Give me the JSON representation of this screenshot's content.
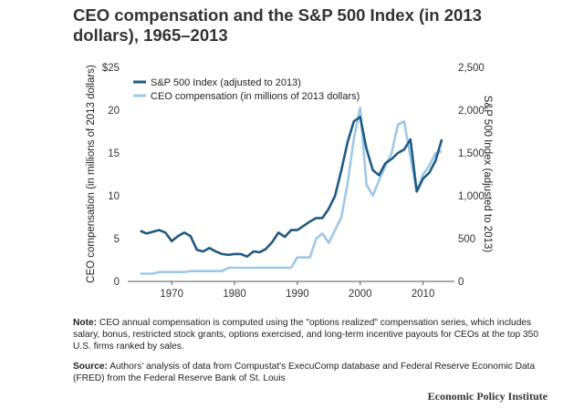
{
  "title": "CEO compensation and the S&P 500 Index (in 2013 dollars), 1965–2013",
  "note_label": "Note:",
  "note_text": " CEO annual compensation is computed using the \"options realized\" compensation series, which includes salary, bonus, restricted stock grants, options exercised, and long-term incentive payouts for CEOs at the top 350 U.S. firms ranked by sales.",
  "source_label": "Source:",
  "source_text": " Authors' analysis of data from Compustat's ExecuComp database and Federal Reserve Economic Data (FRED) from the Federal Reserve Bank of St. Louis",
  "brand": "Economic Policy Institute",
  "colors": {
    "sp500": "#1f5a82",
    "ceo": "#9fc8e6",
    "axis": "#555555"
  },
  "chart_data": {
    "type": "line",
    "left_axis": {
      "label": "CEO compensation (in millions of 2013 dollars)",
      "range": [
        0,
        25
      ],
      "ticks": [
        0,
        5,
        10,
        15,
        20,
        25
      ],
      "tick_labels": [
        "0",
        "5",
        "10",
        "15",
        "20",
        "$25"
      ]
    },
    "right_axis": {
      "label": "S&P 500 Index (adjusted to 2013)",
      "range": [
        0,
        2500
      ],
      "ticks": [
        0,
        500,
        1000,
        1500,
        2000,
        2500
      ],
      "tick_labels": [
        "0",
        "500",
        "1,000",
        "1,500",
        "2,000",
        "2,500"
      ]
    },
    "x_axis": {
      "range": [
        1963,
        2015
      ],
      "ticks": [
        1970,
        1980,
        1990,
        2000,
        2010
      ],
      "tick_labels": [
        "1970",
        "1980",
        "1990",
        "2000",
        "2010"
      ]
    },
    "legend_position": "top-left",
    "series": [
      {
        "name": "S&P 500 Index (adjusted to 2013)",
        "axis": "right",
        "x": [
          1965,
          1966,
          1967,
          1968,
          1969,
          1970,
          1971,
          1972,
          1973,
          1974,
          1975,
          1976,
          1977,
          1978,
          1979,
          1980,
          1981,
          1982,
          1983,
          1984,
          1985,
          1986,
          1987,
          1988,
          1989,
          1990,
          1991,
          1992,
          1993,
          1994,
          1995,
          1996,
          1997,
          1998,
          1999,
          2000,
          2001,
          2002,
          2003,
          2004,
          2005,
          2006,
          2007,
          2008,
          2009,
          2010,
          2011,
          2012,
          2013
        ],
        "values": [
          590,
          560,
          580,
          600,
          570,
          470,
          530,
          570,
          530,
          370,
          350,
          390,
          350,
          320,
          310,
          320,
          320,
          290,
          350,
          340,
          380,
          460,
          570,
          520,
          600,
          600,
          650,
          700,
          740,
          740,
          850,
          1000,
          1300,
          1630,
          1870,
          1920,
          1550,
          1300,
          1240,
          1380,
          1430,
          1500,
          1540,
          1660,
          1050,
          1200,
          1270,
          1410,
          1660
        ]
      },
      {
        "name": "CEO compensation (in millions of 2013 dollars)",
        "axis": "left",
        "x": [
          1965,
          1966,
          1967,
          1968,
          1969,
          1970,
          1971,
          1972,
          1973,
          1974,
          1975,
          1976,
          1977,
          1978,
          1979,
          1980,
          1981,
          1982,
          1983,
          1984,
          1985,
          1986,
          1987,
          1988,
          1989,
          1990,
          1991,
          1992,
          1993,
          1994,
          1995,
          1996,
          1997,
          1998,
          1999,
          2000,
          2001,
          2002,
          2003,
          2004,
          2005,
          2006,
          2007,
          2008,
          2009,
          2010,
          2011,
          2012,
          2013
        ],
        "values": [
          0.9,
          0.9,
          0.9,
          1.1,
          1.1,
          1.1,
          1.1,
          1.1,
          1.2,
          1.2,
          1.2,
          1.2,
          1.2,
          1.2,
          1.6,
          1.6,
          1.6,
          1.6,
          1.6,
          1.6,
          1.6,
          1.6,
          1.6,
          1.6,
          1.6,
          2.8,
          2.8,
          2.8,
          5.0,
          5.6,
          4.5,
          6.0,
          7.5,
          11.5,
          16.7,
          20.3,
          11.3,
          10.0,
          11.8,
          13.5,
          15.0,
          18.3,
          18.7,
          14.5,
          10.5,
          12.5,
          13.5,
          15.0,
          15.2
        ]
      }
    ]
  }
}
